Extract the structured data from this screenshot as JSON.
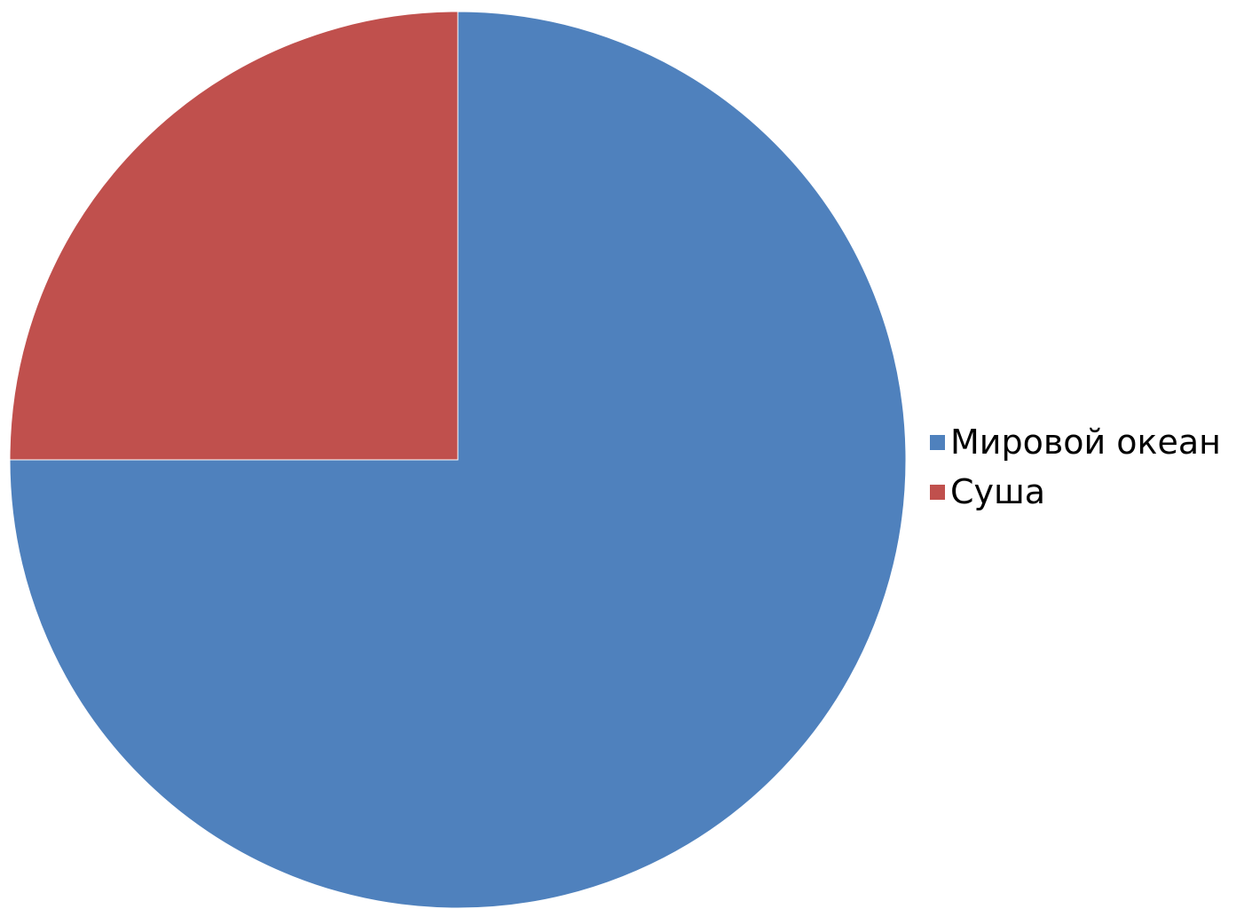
{
  "chart_data": {
    "type": "pie",
    "title": "",
    "legend_position": "right",
    "slices": [
      {
        "label": "Мировой океан",
        "value": 75,
        "color": "#4F81BD"
      },
      {
        "label": "Суша",
        "value": 25,
        "color": "#C0504D"
      }
    ]
  }
}
